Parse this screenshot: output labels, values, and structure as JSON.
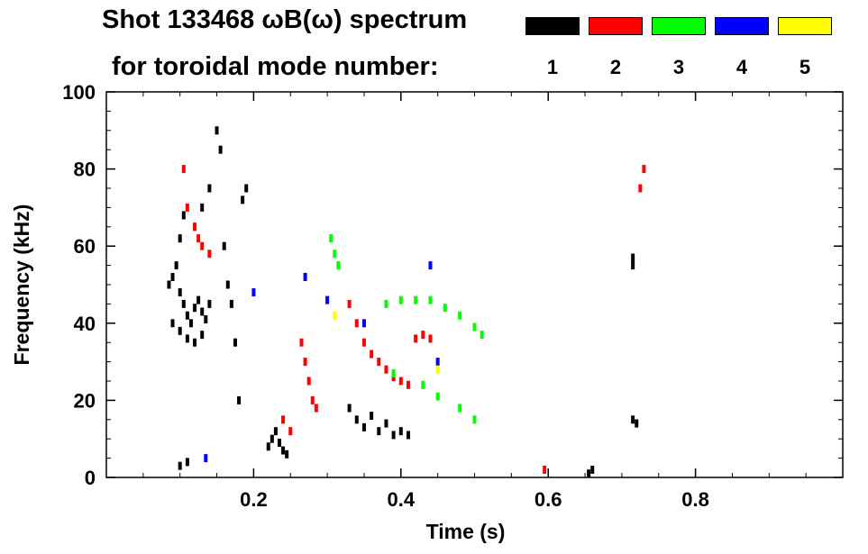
{
  "title_line1": "Shot 133468 ωB(ω) spectrum",
  "title_line2": "for toroidal mode number:",
  "chart_data": {
    "type": "scatter",
    "xlabel": "Time (s)",
    "ylabel": "Frequency (kHz)",
    "xlim": [
      0.0,
      1.0
    ],
    "ylim": [
      0,
      100
    ],
    "xticks": [
      0.2,
      0.4,
      0.6,
      0.8
    ],
    "xtick_labels": [
      "0.2",
      "0.4",
      "0.6",
      "0.8"
    ],
    "yticks": [
      0,
      20,
      40,
      60,
      80,
      100
    ],
    "ytick_labels": [
      "0",
      "20",
      "40",
      "60",
      "80",
      "100"
    ],
    "grid": false,
    "legend": [
      {
        "label": "1",
        "color": "#000000"
      },
      {
        "label": "2",
        "color": "#ff0000"
      },
      {
        "label": "3",
        "color": "#00ff00"
      },
      {
        "label": "4",
        "color": "#0000ff"
      },
      {
        "label": "5",
        "color": "#ffff00"
      }
    ],
    "series": [
      {
        "mode": "1",
        "color": "#000000",
        "points": [
          [
            0.085,
            50
          ],
          [
            0.09,
            52
          ],
          [
            0.095,
            55
          ],
          [
            0.1,
            48
          ],
          [
            0.105,
            45
          ],
          [
            0.11,
            42
          ],
          [
            0.115,
            40
          ],
          [
            0.12,
            44
          ],
          [
            0.125,
            46
          ],
          [
            0.13,
            43
          ],
          [
            0.135,
            41
          ],
          [
            0.14,
            45
          ],
          [
            0.09,
            40
          ],
          [
            0.1,
            38
          ],
          [
            0.11,
            36
          ],
          [
            0.12,
            35
          ],
          [
            0.13,
            37
          ],
          [
            0.12,
            65
          ],
          [
            0.13,
            70
          ],
          [
            0.14,
            75
          ],
          [
            0.15,
            90
          ],
          [
            0.155,
            85
          ],
          [
            0.1,
            62
          ],
          [
            0.105,
            68
          ],
          [
            0.16,
            60
          ],
          [
            0.165,
            50
          ],
          [
            0.17,
            45
          ],
          [
            0.175,
            35
          ],
          [
            0.18,
            20
          ],
          [
            0.185,
            72
          ],
          [
            0.19,
            75
          ],
          [
            0.22,
            8
          ],
          [
            0.225,
            10
          ],
          [
            0.23,
            12
          ],
          [
            0.235,
            9
          ],
          [
            0.24,
            7
          ],
          [
            0.245,
            6
          ],
          [
            0.33,
            18
          ],
          [
            0.34,
            15
          ],
          [
            0.35,
            13
          ],
          [
            0.36,
            16
          ],
          [
            0.37,
            12
          ],
          [
            0.38,
            14
          ],
          [
            0.39,
            11
          ],
          [
            0.4,
            12
          ],
          [
            0.41,
            11
          ],
          [
            0.715,
            57
          ],
          [
            0.715,
            55
          ],
          [
            0.715,
            15
          ],
          [
            0.72,
            14
          ],
          [
            0.655,
            1
          ],
          [
            0.66,
            2
          ],
          [
            0.1,
            3
          ],
          [
            0.11,
            4
          ]
        ]
      },
      {
        "mode": "2",
        "color": "#ff0000",
        "points": [
          [
            0.105,
            80
          ],
          [
            0.11,
            70
          ],
          [
            0.12,
            65
          ],
          [
            0.125,
            62
          ],
          [
            0.13,
            60
          ],
          [
            0.14,
            58
          ],
          [
            0.265,
            35
          ],
          [
            0.27,
            30
          ],
          [
            0.275,
            25
          ],
          [
            0.28,
            20
          ],
          [
            0.285,
            18
          ],
          [
            0.33,
            45
          ],
          [
            0.34,
            40
          ],
          [
            0.35,
            35
          ],
          [
            0.36,
            32
          ],
          [
            0.37,
            30
          ],
          [
            0.38,
            28
          ],
          [
            0.39,
            26
          ],
          [
            0.4,
            25
          ],
          [
            0.41,
            24
          ],
          [
            0.42,
            36
          ],
          [
            0.43,
            37
          ],
          [
            0.44,
            36
          ],
          [
            0.24,
            15
          ],
          [
            0.25,
            12
          ],
          [
            0.595,
            2
          ],
          [
            0.725,
            75
          ],
          [
            0.73,
            80
          ]
        ]
      },
      {
        "mode": "3",
        "color": "#00ff00",
        "points": [
          [
            0.305,
            62
          ],
          [
            0.31,
            58
          ],
          [
            0.315,
            55
          ],
          [
            0.38,
            45
          ],
          [
            0.4,
            46
          ],
          [
            0.42,
            46
          ],
          [
            0.44,
            46
          ],
          [
            0.46,
            44
          ],
          [
            0.48,
            42
          ],
          [
            0.5,
            39
          ],
          [
            0.51,
            37
          ],
          [
            0.39,
            27
          ],
          [
            0.43,
            24
          ],
          [
            0.45,
            21
          ],
          [
            0.48,
            18
          ],
          [
            0.5,
            15
          ]
        ]
      },
      {
        "mode": "4",
        "color": "#0000ff",
        "points": [
          [
            0.27,
            52
          ],
          [
            0.3,
            46
          ],
          [
            0.44,
            55
          ],
          [
            0.35,
            40
          ],
          [
            0.45,
            30
          ],
          [
            0.135,
            5
          ],
          [
            0.2,
            48
          ]
        ]
      },
      {
        "mode": "5",
        "color": "#ffff00",
        "points": [
          [
            0.31,
            42
          ],
          [
            0.45,
            28
          ]
        ]
      }
    ]
  }
}
